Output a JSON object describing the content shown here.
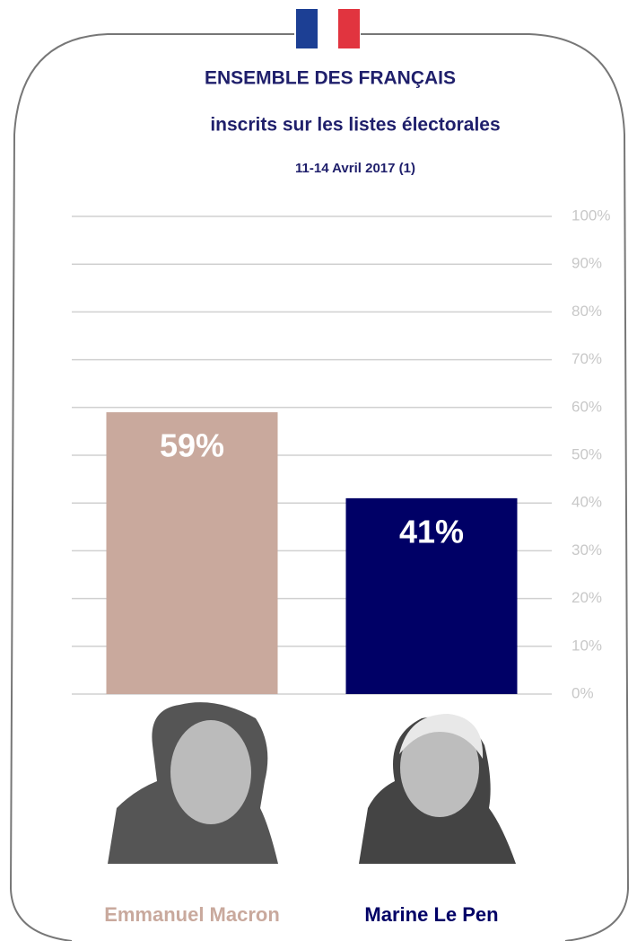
{
  "chart_data": {
    "type": "bar",
    "title": "ENSEMBLE DES FRANÇAIS",
    "subtitle": "inscrits sur les listes électorales",
    "note": "11-14 Avril 2017 (1)",
    "categories": [
      "Emmanuel Macron",
      "Marine Le Pen"
    ],
    "values": [
      59,
      41
    ],
    "value_labels": [
      "59%",
      "41%"
    ],
    "colors": [
      "#c9a99d",
      "#000066"
    ],
    "ylim": [
      0,
      100
    ],
    "yticks": [
      {
        "value": 0,
        "label": "0%"
      },
      {
        "value": 10,
        "label": "10%"
      },
      {
        "value": 20,
        "label": "20%"
      },
      {
        "value": 30,
        "label": "30%"
      },
      {
        "value": 40,
        "label": "40%"
      },
      {
        "value": 50,
        "label": "50%"
      },
      {
        "value": 60,
        "label": "60%"
      },
      {
        "value": 70,
        "label": "70%"
      },
      {
        "value": 80,
        "label": "80%"
      },
      {
        "value": 90,
        "label": "90%"
      },
      {
        "value": 100,
        "label": "100%"
      }
    ],
    "grid": true
  }
}
